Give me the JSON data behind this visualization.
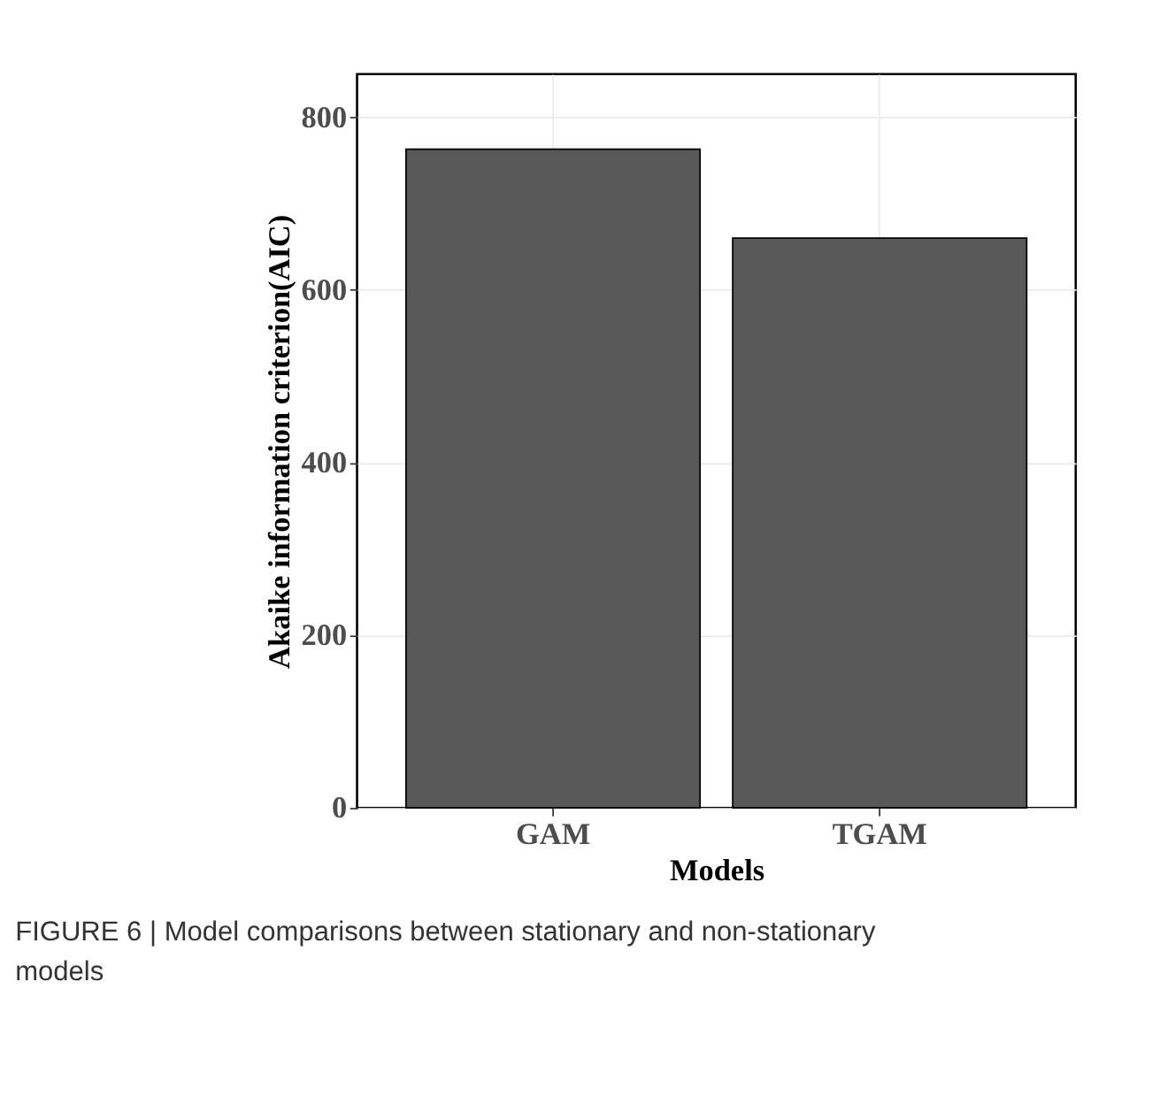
{
  "chart_data": {
    "type": "bar",
    "xlabel": "Models",
    "ylabel": "Akaike information criterion(AIC)",
    "categories": [
      "GAM",
      "TGAM"
    ],
    "values": [
      763,
      660
    ],
    "color": "#595959",
    "ylim": [
      0,
      850
    ],
    "yticks": [
      0,
      200,
      400,
      600,
      800
    ],
    "grid": true,
    "annotations": [
      "FIGURE 6 | Model comparisons between stationary and non-stationary models"
    ]
  }
}
